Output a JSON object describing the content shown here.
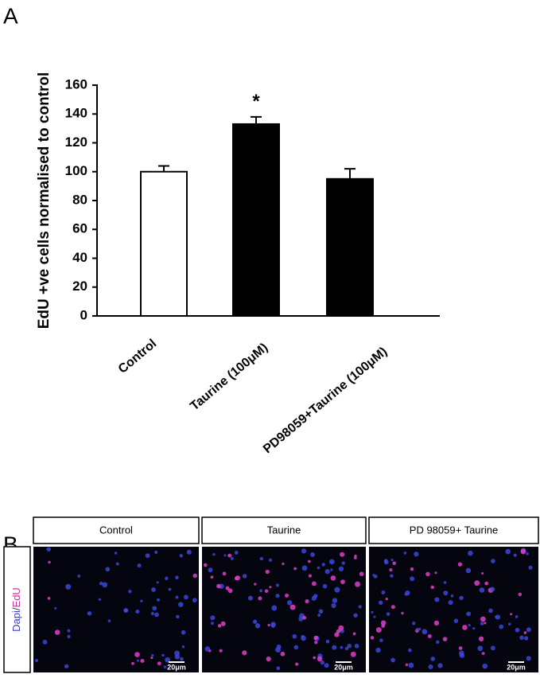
{
  "panel_a_label": "A",
  "panel_b_label": "B",
  "chart_data": {
    "type": "bar",
    "y_label": "EdU +ve cells normalised to control",
    "categories": [
      "Control",
      "Taurine (100μM)",
      "PD98059+Taurine (100μM)"
    ],
    "values": [
      100,
      133,
      95
    ],
    "errors": [
      4,
      5,
      7
    ],
    "colors": [
      "#ffffff",
      "#000000",
      "#000000"
    ],
    "ylim": [
      0,
      160
    ],
    "yticks": [
      0,
      20,
      40,
      60,
      80,
      100,
      120,
      140,
      160
    ],
    "annotations": [
      {
        "text": "*",
        "category": 1
      }
    ]
  },
  "panel_b": {
    "columns": [
      "Control",
      "Taurine",
      "PD 98059+ Taurine"
    ],
    "row_label": {
      "dapi": "Dapi",
      "separator": "/",
      "edu": "EdU"
    },
    "scale_bars": [
      "20μm",
      "20μm",
      "20μm"
    ]
  }
}
